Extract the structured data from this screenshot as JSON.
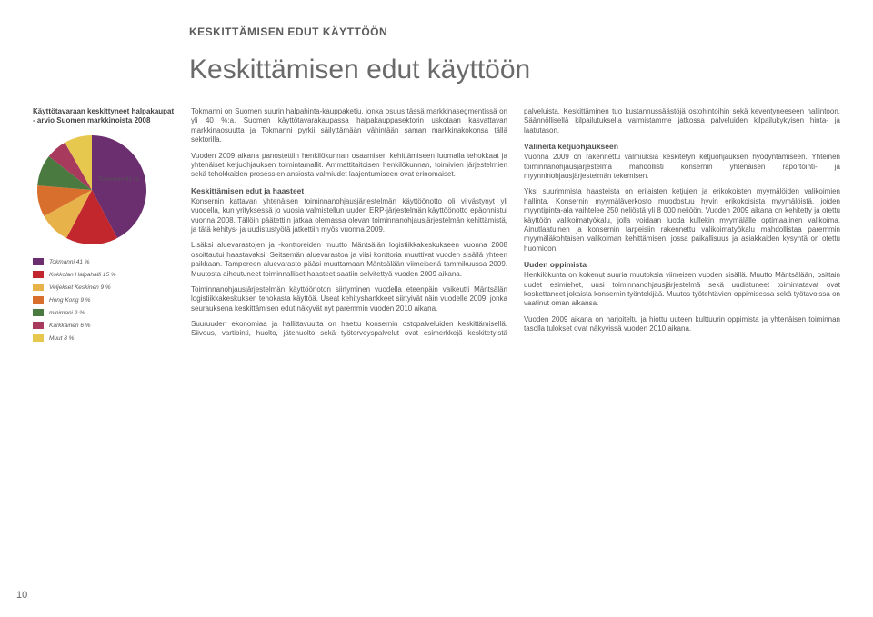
{
  "header_small": "KESKITTÄMISEN EDUT KÄYTTÖÖN",
  "title": "Keskittämisen edut käyttöön",
  "page_number": "10",
  "chart": {
    "type": "pie",
    "title": "Käyttötavaraan keskittyneet halpakaupat - arvio Suomen markkinoista 2008",
    "inside_label": "Tokmanni 41 %",
    "slices": [
      {
        "label": "Tokmanni 41 %",
        "value": 41,
        "color": "#6b2e6f"
      },
      {
        "label": "Kokkolan Halpahalli 15 %",
        "value": 15,
        "color": "#c1272d"
      },
      {
        "label": "Veljekset Keskinen 9 %",
        "value": 9,
        "color": "#e8b24a"
      },
      {
        "label": "Hong Kong 9 %",
        "value": 9,
        "color": "#d96f2c"
      },
      {
        "label": "minimani 9 %",
        "value": 9,
        "color": "#4a7a3f"
      },
      {
        "label": "Kärkkäinen 6 %",
        "value": 6,
        "color": "#a83a5e"
      },
      {
        "label": "Muut 8 %",
        "value": 8,
        "color": "#e6c84e"
      }
    ],
    "background_color": "#ffffff",
    "label_fontsize": 6.5
  },
  "body": {
    "p1": "Tokmanni on Suomen suurin halpahinta-kauppaketju, jonka osuus tässä markkinasegmentissä on yli 40 %:a. Suomen käyttötavarakaupassa halpakauppasektorin uskotaan kasvattavan markkinaosuutta ja Tokmanni pyrkii säilyttämään vähintään saman markkinakokonsa tällä sektorilla.",
    "p2": "Vuoden 2009 aikana panostettiin henkilökunnan osaamisen kehittämiseen luomalla tehokkaat ja yhtenäiset ketjuohjauksen toimintamallit. Ammattitaitoisen henkilökunnan, toimivien järjestelmien sekä tehokkaiden prosessien ansiosta valmiudet laajentumiseen ovat erinomaiset.",
    "h1": "Keskittämisen edut ja haasteet",
    "p3": "Konsernin kattavan yhtenäisen toiminnanohjausjärjestelmän käyttöönotto oli viivästynyt yli vuodella, kun yrityksessä jo vuosia valmistellun uuden ERP-järjestelmän käyttöönotto epäonnistui vuonna 2008. Tällöin päätettiin jatkaa olemassa olevan toiminnanohjausjärjestelmän kehittämistä, ja tätä kehitys- ja uudistustyötä jatkettiin myös vuonna 2009.",
    "p4": "Lisäksi aluevarastojen ja -konttoreiden muutto Mäntsälän logistiikkakeskukseen vuonna 2008 osoittautui haastavaksi. Seitsemän aluevarastoa ja viisi konttoria muuttivat vuoden sisällä yhteen paikkaan. Tampereen aluevarasto pääsi muuttamaan Mäntsälään viimeisenä tammikuussa 2009. Muutosta aiheutuneet toiminnalliset haasteet saatiin selvitettyä vuoden 2009 aikana.",
    "p5": "Toiminnanohjausjärjestelmän käyttöönoton siirtyminen vuodella eteenpäin vaikeutti Mäntsälän logistiikkakeskuksen tehokasta käyttöä. Useat kehityshankkeet siirtyivät näin vuodelle 2009, jonka seurauksena keskittämisen edut näkyvät nyt paremmin vuoden 2010 aikana.",
    "p6": "Suuruuden ekonomiaa ja hallittavuutta on haettu konsernin ostopalveluiden keskittämisellä. Siivous, vartiointi, huolto, jätehuolto sekä työterveyspalvelut ovat esimerkkejä keskitetyistä palveluista. Keskittäminen tuo kustannussäästöjä ostohintoihin sekä keventyneeseen hallintoon. Säännöllisellä kilpailutuksella varmistamme jatkossa palveluiden kilpailukykyisen hinta- ja laatutason.",
    "h2": "Välineitä ketjuohjaukseen",
    "p7": "Vuonna 2009 on rakennettu valmiuksia keskitetyn ketjuohjauksen hyödyntämiseen. Yhteinen toiminnanohjausjärjestelmä mahdollisti konsernin yhtenäisen raportointi- ja myynninohjausjärjestelmän tekemisen.",
    "p8": "Yksi suurimmista haasteista on erilaisten ketjujen ja erikokoisten myymälöiden valikoimien hallinta. Konsernin myymäläverkosto muodostuu hyvin erikokoisista myymälöistä, joiden myyntipinta-ala vaihtelee 250 neliöstä yli 8 000 neliöön. Vuoden 2009 aikana on kehitetty ja otettu käyttöön valikoimatyökalu, jolla voidaan luoda kullekin myymälälle optimaalinen valikoima. Ainutlaatuinen ja konsernin tarpeisiin rakennettu valikoimatyökalu mahdollistaa paremmin myymäläkohtaisen valikoiman kehittämisen, jossa paikallisuus ja asiakkaiden kysyntä on otettu huomioon.",
    "h3": "Uuden oppimista",
    "p9": "Henkilökunta on kokenut suuria muutoksia viimeisen vuoden sisällä. Muutto Mäntsälään, osittain uudet esimiehet, uusi toiminnanohjausjärjestelmä sekä uudistuneet toimintatavat ovat koskettaneet jokaista konsernin työntekijää. Muutos työtehtävien oppimisessa sekä työtavoissa on vaatinut oman aikansa.",
    "p10": "Vuoden 2009 aikana on harjoiteltu ja hiottu uuteen kulttuurin oppimista ja yhtenäisen toiminnan tasolla tulokset ovat näkyvissä vuoden 2010 aikana."
  }
}
